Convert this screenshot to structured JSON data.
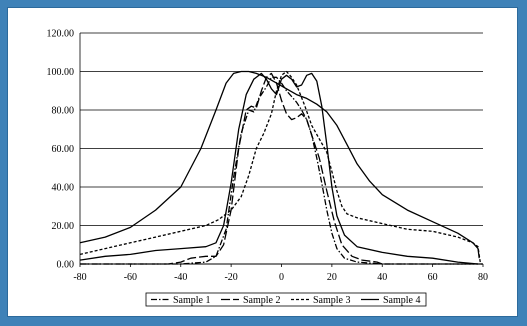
{
  "chart_data": {
    "type": "line",
    "title": "",
    "xlabel": "",
    "ylabel": "",
    "xlim": [
      -80,
      80
    ],
    "ylim": [
      0,
      120
    ],
    "x_ticks": [
      "-80",
      "-60",
      "-40",
      "-20",
      "0",
      "20",
      "40",
      "60",
      "80"
    ],
    "y_ticks": [
      "0.00",
      "20.00",
      "40.00",
      "60.00",
      "80.00",
      "100.00",
      "120.00"
    ],
    "grid": "horizontal",
    "legend_position": "bottom",
    "series": [
      {
        "name": "Sample 1",
        "style": "dash-dot",
        "points": [
          [
            -80,
            0
          ],
          [
            -60,
            0
          ],
          [
            -40,
            0
          ],
          [
            -30,
            1
          ],
          [
            -26,
            4
          ],
          [
            -22,
            18
          ],
          [
            -19,
            45
          ],
          [
            -16,
            68
          ],
          [
            -13,
            80
          ],
          [
            -11,
            79
          ],
          [
            -9,
            86
          ],
          [
            -6,
            92
          ],
          [
            -4,
            97
          ],
          [
            -2,
            97
          ],
          [
            0,
            94
          ],
          [
            2,
            90
          ],
          [
            4,
            87
          ],
          [
            6,
            84
          ],
          [
            8,
            80
          ],
          [
            10,
            75
          ],
          [
            12,
            67
          ],
          [
            14,
            55
          ],
          [
            16,
            42
          ],
          [
            18,
            28
          ],
          [
            20,
            16
          ],
          [
            22,
            8
          ],
          [
            25,
            3
          ],
          [
            30,
            1
          ],
          [
            40,
            0
          ],
          [
            60,
            0
          ],
          [
            80,
            0
          ]
        ]
      },
      {
        "name": "Sample 2",
        "style": "long-dash",
        "points": [
          [
            -80,
            0
          ],
          [
            -60,
            0
          ],
          [
            -45,
            0
          ],
          [
            -40,
            1
          ],
          [
            -36,
            3
          ],
          [
            -30,
            4
          ],
          [
            -26,
            4
          ],
          [
            -23,
            10
          ],
          [
            -20,
            28
          ],
          [
            -17,
            60
          ],
          [
            -14,
            80
          ],
          [
            -12,
            82
          ],
          [
            -10,
            81
          ],
          [
            -8,
            90
          ],
          [
            -6,
            97
          ],
          [
            -4,
            99
          ],
          [
            -2,
            94
          ],
          [
            0,
            85
          ],
          [
            2,
            78
          ],
          [
            4,
            75
          ],
          [
            6,
            76
          ],
          [
            8,
            78
          ],
          [
            10,
            75
          ],
          [
            12,
            67
          ],
          [
            15,
            55
          ],
          [
            18,
            38
          ],
          [
            21,
            22
          ],
          [
            24,
            10
          ],
          [
            28,
            4
          ],
          [
            32,
            2
          ],
          [
            38,
            1
          ],
          [
            40,
            0
          ],
          [
            60,
            0
          ],
          [
            80,
            0
          ]
        ]
      },
      {
        "name": "Sample 3",
        "style": "short-dash",
        "points": [
          [
            -80,
            5
          ],
          [
            -70,
            8
          ],
          [
            -60,
            11
          ],
          [
            -50,
            14
          ],
          [
            -40,
            17
          ],
          [
            -30,
            20
          ],
          [
            -25,
            23
          ],
          [
            -20,
            28
          ],
          [
            -16,
            35
          ],
          [
            -13,
            46
          ],
          [
            -10,
            60
          ],
          [
            -7,
            68
          ],
          [
            -4,
            78
          ],
          [
            -2,
            90
          ],
          [
            0,
            98
          ],
          [
            2,
            100
          ],
          [
            4,
            97
          ],
          [
            6,
            93
          ],
          [
            9,
            83
          ],
          [
            12,
            72
          ],
          [
            15,
            65
          ],
          [
            18,
            58
          ],
          [
            20,
            48
          ],
          [
            22,
            38
          ],
          [
            24,
            30
          ],
          [
            26,
            26
          ],
          [
            30,
            24
          ],
          [
            40,
            21
          ],
          [
            50,
            18
          ],
          [
            60,
            17
          ],
          [
            70,
            14
          ],
          [
            76,
            11
          ],
          [
            78,
            9
          ],
          [
            79,
            0
          ]
        ]
      },
      {
        "name": "Sample 4",
        "style": "solid",
        "points": [
          [
            -80,
            11
          ],
          [
            -70,
            14
          ],
          [
            -60,
            19
          ],
          [
            -50,
            28
          ],
          [
            -40,
            40
          ],
          [
            -32,
            60
          ],
          [
            -26,
            80
          ],
          [
            -22,
            94
          ],
          [
            -19,
            99
          ],
          [
            -16,
            100
          ],
          [
            -13,
            100
          ],
          [
            -10,
            99
          ],
          [
            -6,
            97
          ],
          [
            -2,
            94
          ],
          [
            2,
            91
          ],
          [
            6,
            88
          ],
          [
            10,
            86
          ],
          [
            14,
            83
          ],
          [
            18,
            79
          ],
          [
            22,
            72
          ],
          [
            26,
            62
          ],
          [
            30,
            52
          ],
          [
            35,
            43
          ],
          [
            40,
            36
          ],
          [
            50,
            28
          ],
          [
            60,
            22
          ],
          [
            70,
            16
          ],
          [
            76,
            11
          ],
          [
            78,
            8
          ],
          [
            78.5,
            3
          ]
        ]
      },
      {
        "name": "",
        "style": "solid",
        "points": [
          [
            -80,
            2
          ],
          [
            -70,
            4
          ],
          [
            -60,
            5
          ],
          [
            -50,
            7
          ],
          [
            -40,
            8
          ],
          [
            -30,
            9
          ],
          [
            -26,
            11
          ],
          [
            -23,
            20
          ],
          [
            -20,
            42
          ],
          [
            -17,
            70
          ],
          [
            -14,
            88
          ],
          [
            -11,
            96
          ],
          [
            -8,
            99
          ],
          [
            -6,
            96
          ],
          [
            -4,
            91
          ],
          [
            -2,
            88
          ],
          [
            0,
            96
          ],
          [
            2,
            98
          ],
          [
            4,
            96
          ],
          [
            6,
            92
          ],
          [
            8,
            93
          ],
          [
            10,
            98
          ],
          [
            12,
            99
          ],
          [
            14,
            95
          ],
          [
            16,
            82
          ],
          [
            18,
            62
          ],
          [
            20,
            40
          ],
          [
            22,
            25
          ],
          [
            25,
            15
          ],
          [
            30,
            9
          ],
          [
            40,
            6
          ],
          [
            50,
            4
          ],
          [
            60,
            3
          ],
          [
            70,
            1
          ],
          [
            78,
            0
          ]
        ]
      }
    ]
  }
}
